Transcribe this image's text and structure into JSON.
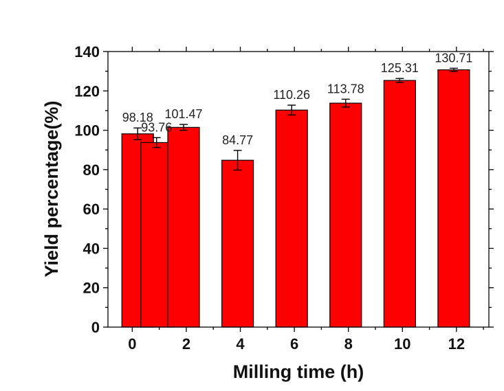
{
  "chart_data": {
    "type": "bar",
    "xlabel": "Milling time (h)",
    "ylabel": "Yield percentage(%)",
    "xlim": [
      -0.9,
      13.2
    ],
    "ylim": [
      0,
      140
    ],
    "x_ticks": [
      0,
      2,
      4,
      6,
      8,
      10,
      12
    ],
    "y_ticks": [
      0,
      20,
      40,
      60,
      80,
      100,
      120,
      140
    ],
    "bar_color": "#ff0000",
    "grid": false,
    "bars": [
      {
        "x": 0.2,
        "value": 98.18,
        "error": 3.0,
        "label": "98.18"
      },
      {
        "x": 0.9,
        "value": 93.76,
        "error": 2.5,
        "label": "93.76"
      },
      {
        "x": 1.9,
        "value": 101.47,
        "error": 1.5,
        "label": "101.47"
      },
      {
        "x": 3.9,
        "value": 84.77,
        "error": 5.0,
        "label": "84.77"
      },
      {
        "x": 5.9,
        "value": 110.26,
        "error": 2.5,
        "label": "110.26"
      },
      {
        "x": 7.9,
        "value": 113.78,
        "error": 2.0,
        "label": "113.78"
      },
      {
        "x": 9.9,
        "value": 125.31,
        "error": 1.0,
        "label": "125.31"
      },
      {
        "x": 11.9,
        "value": 130.71,
        "error": 0.8,
        "label": "130.71"
      }
    ]
  }
}
